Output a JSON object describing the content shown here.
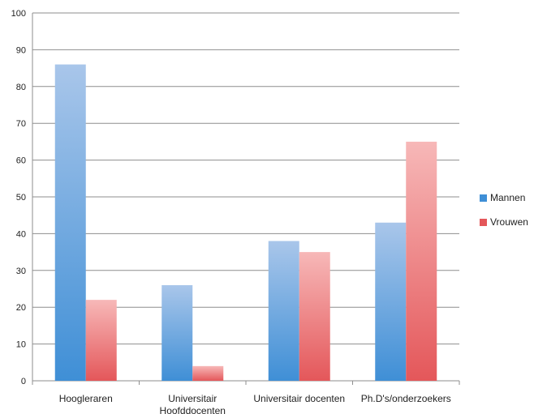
{
  "chart_data": {
    "type": "bar",
    "categories": [
      "Hoogleraren",
      "Universitair Hoofddocenten",
      "Universitair docenten",
      "Ph.D's/onderzoekers"
    ],
    "category_lines": [
      [
        "Hoogleraren"
      ],
      [
        "Universitair",
        "Hoofddocenten"
      ],
      [
        "Universitair docenten"
      ],
      [
        "Ph.D's/onderzoekers"
      ]
    ],
    "series": [
      {
        "name": "Mannen",
        "values": [
          86,
          26,
          38,
          43
        ],
        "color_top": "#a9c6ea",
        "color_bottom": "#3f8fd6"
      },
      {
        "name": "Vrouwen",
        "values": [
          22,
          4,
          35,
          65
        ],
        "color_top": "#f7b8b8",
        "color_bottom": "#e4575a"
      }
    ],
    "ylim": [
      0,
      100
    ],
    "yticks": [
      0,
      10,
      20,
      30,
      40,
      50,
      60,
      70,
      80,
      90,
      100
    ],
    "title": "",
    "xlabel": "",
    "ylabel": "",
    "grid": true,
    "legend_position": "right"
  }
}
